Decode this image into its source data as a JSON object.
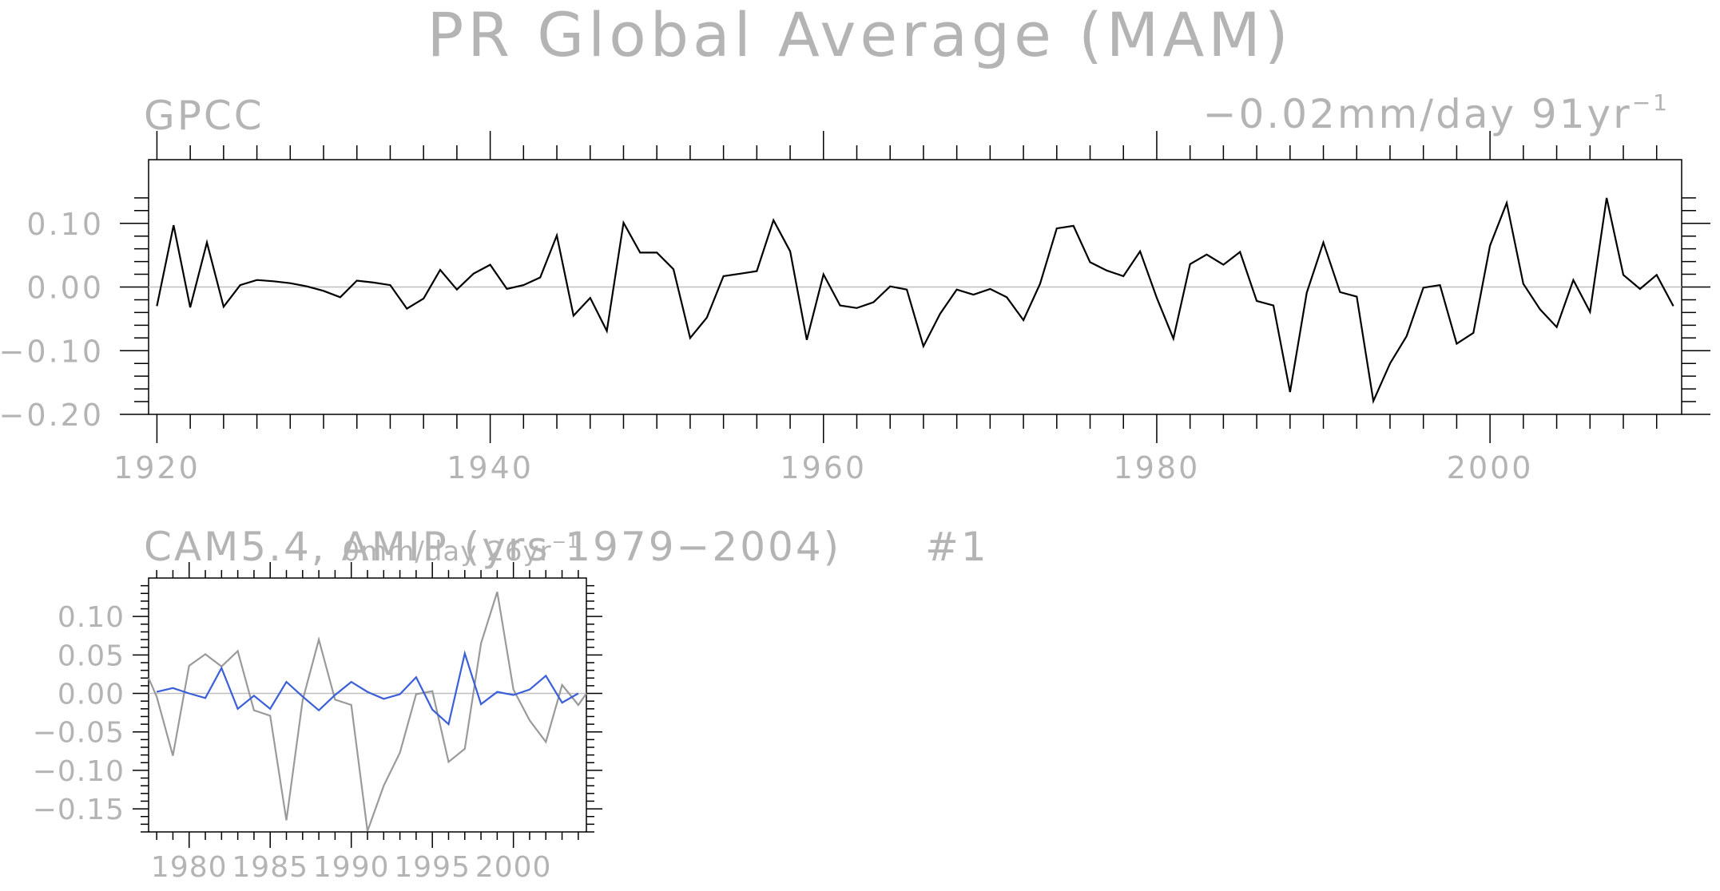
{
  "page_title": "PR Global Average (MAM)",
  "chart_data": [
    {
      "type": "line",
      "title": "GPCC",
      "trend_label": "−0.02mm/day 91yr",
      "trend_sup": "−1",
      "xlim": [
        1919.5,
        2011.5
      ],
      "ylim": [
        -0.2,
        0.2
      ],
      "ylim_visible": [
        -0.2,
        0.15
      ],
      "x_ticks": [
        1920,
        1940,
        1960,
        1980,
        2000
      ],
      "x_tick_labels": [
        "1920",
        "1940",
        "1960",
        "1980",
        "2000"
      ],
      "y_ticks": [
        0.1,
        0.0,
        -0.1,
        -0.2
      ],
      "y_tick_labels": [
        "0.10",
        "0.00",
        "−0.10",
        "−0.20"
      ],
      "zero_line": true,
      "series": [
        {
          "color": "#000000",
          "x_start": 1920,
          "values": [
            -0.03,
            0.097,
            -0.032,
            0.07,
            -0.031,
            0.003,
            0.011,
            0.009,
            0.006,
            0.001,
            -0.006,
            -0.016,
            0.01,
            0.007,
            0.003,
            -0.034,
            -0.018,
            0.027,
            -0.004,
            0.021,
            0.035,
            -0.003,
            0.003,
            0.015,
            0.081,
            -0.045,
            -0.017,
            -0.069,
            0.101,
            0.054,
            0.054,
            0.028,
            -0.08,
            -0.048,
            0.017,
            0.021,
            0.025,
            0.105,
            0.056,
            -0.083,
            0.02,
            -0.029,
            -0.033,
            -0.024,
            0.001,
            -0.004,
            -0.093,
            -0.042,
            -0.004,
            -0.012,
            -0.003,
            -0.016,
            -0.052,
            0.005,
            0.092,
            0.096,
            0.039,
            0.026,
            0.017,
            0.056,
            -0.017,
            -0.081,
            0.036,
            0.051,
            0.035,
            0.055,
            -0.022,
            -0.029,
            -0.165,
            -0.009,
            0.07,
            -0.008,
            -0.015,
            -0.179,
            -0.12,
            -0.077,
            -0.001,
            0.003,
            -0.089,
            -0.072,
            0.065,
            0.132,
            0.005,
            -0.035,
            -0.063,
            0.011,
            -0.039,
            0.14,
            0.019,
            -0.003,
            0.019,
            -0.03
          ]
        }
      ]
    },
    {
      "type": "line",
      "title": "CAM5.4, AMIP (yrs 1979−2004)",
      "run_label": "#1",
      "trend_label": "0mm/day 26yr",
      "trend_sup": "−1",
      "xlim": [
        1977.5,
        2004.5
      ],
      "ylim": [
        -0.18,
        0.15
      ],
      "x_ticks": [
        1980,
        1985,
        1990,
        1995,
        2000
      ],
      "x_tick_labels": [
        "1980",
        "1985",
        "1990",
        "1995",
        "2000"
      ],
      "y_ticks": [
        0.1,
        0.05,
        0.0,
        -0.05,
        -0.1,
        -0.15
      ],
      "y_tick_labels": [
        "0.10",
        "0.05",
        "0.00",
        "−0.05",
        "−0.10",
        "−0.15"
      ],
      "zero_line": true,
      "series": [
        {
          "color": "#9a9a9a",
          "x": [
            1977.5,
            1978,
            1979,
            1980,
            1981,
            1982,
            1983,
            1984,
            1985,
            1986,
            1987,
            1988,
            1989,
            1990,
            1991,
            1992,
            1993,
            1994,
            1995,
            1996,
            1997,
            1998,
            1999,
            2000,
            2001,
            2002,
            2003,
            2004,
            2004.5
          ],
          "values": [
            0.02,
            -0.004,
            -0.081,
            0.036,
            0.051,
            0.035,
            0.055,
            -0.022,
            -0.029,
            -0.165,
            -0.009,
            0.07,
            -0.008,
            -0.015,
            -0.179,
            -0.12,
            -0.077,
            -0.001,
            0.003,
            -0.089,
            -0.072,
            0.065,
            0.132,
            0.005,
            -0.035,
            -0.063,
            0.011,
            -0.015,
            0.0
          ]
        },
        {
          "color": "#3a5fd8",
          "x": [
            1978,
            1979,
            1980,
            1981,
            1982,
            1983,
            1984,
            1985,
            1986,
            1987,
            1988,
            1989,
            1990,
            1991,
            1992,
            1993,
            1994,
            1995,
            1996,
            1997,
            1998,
            1999,
            2000,
            2001,
            2002,
            2003,
            2004
          ],
          "values": [
            0.002,
            0.007,
            0.0,
            -0.006,
            0.033,
            -0.02,
            -0.003,
            -0.02,
            0.015,
            -0.004,
            -0.022,
            -0.002,
            0.015,
            0.002,
            -0.007,
            -0.001,
            0.021,
            -0.021,
            -0.04,
            0.052,
            -0.014,
            0.002,
            -0.002,
            0.005,
            0.023,
            -0.012,
            0.0
          ]
        }
      ]
    }
  ]
}
